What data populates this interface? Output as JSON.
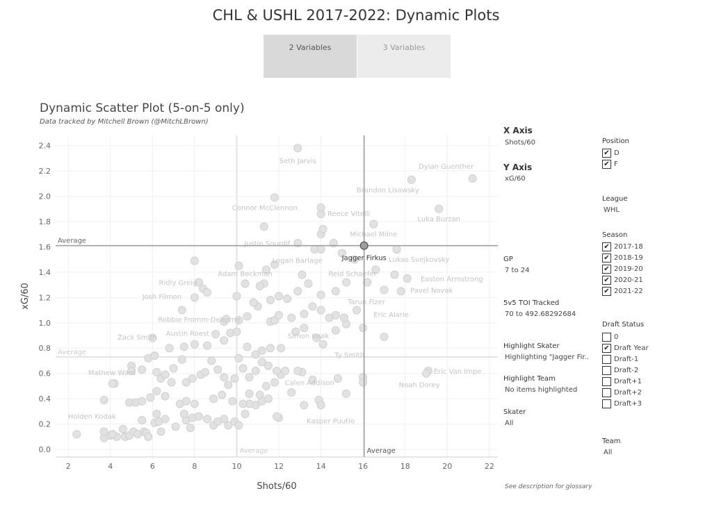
{
  "page_title": "CHL & USHL 2017-2022: Dynamic Plots",
  "tabs": [
    {
      "label": "2 Variables",
      "active": true
    },
    {
      "label": "3 Variables",
      "active": false
    }
  ],
  "chart_heading": "Dynamic Scatter Plot (5-on-5 only)",
  "chart_subheading": "Data tracked by Mitchell Brown (@MitchLBrown)",
  "side": {
    "x_axis_title": "X Axis",
    "x_axis_value": "Shots/60",
    "y_axis_title": "Y Axis",
    "y_axis_value": "xG/60",
    "gp_label": "GP",
    "gp_value": "7 to 24",
    "toi_label": "5v5 TOI Tracked",
    "toi_value": "70 to 492.68292684",
    "highlight_skater_label": "Highlight Skater",
    "highlight_skater_value": "Highlighting \"Jagger Fir..",
    "highlight_team_label": "Highlight Team",
    "highlight_team_value": "No items highlighted",
    "skater_label": "Skater",
    "skater_value": "All",
    "glossary": "See description for glossary"
  },
  "filters": {
    "position": {
      "label": "Position",
      "options": [
        {
          "label": "D",
          "checked": true
        },
        {
          "label": "F",
          "checked": true
        }
      ]
    },
    "league": {
      "label": "League",
      "value": "WHL"
    },
    "season": {
      "label": "Season",
      "options": [
        {
          "label": "2017-18",
          "checked": true
        },
        {
          "label": "2018-19",
          "checked": true
        },
        {
          "label": "2019-20",
          "checked": true
        },
        {
          "label": "2020-21",
          "checked": true
        },
        {
          "label": "2021-22",
          "checked": true
        }
      ]
    },
    "draft_status": {
      "label": "Draft Status",
      "options": [
        {
          "label": "0",
          "checked": false
        },
        {
          "label": "Draft Year",
          "checked": true
        },
        {
          "label": "Draft-1",
          "checked": false
        },
        {
          "label": "Draft-2",
          "checked": false
        },
        {
          "label": "Draft+1",
          "checked": false
        },
        {
          "label": "Draft+2",
          "checked": false
        },
        {
          "label": "Draft+3",
          "checked": false
        }
      ]
    },
    "team": {
      "label": "Team",
      "value": "All"
    }
  },
  "chart_data": {
    "type": "scatter",
    "xlabel": "Shots/60",
    "ylabel": "xG/60",
    "xlim": [
      1.4,
      22.4
    ],
    "ylim": [
      -0.06,
      2.48
    ],
    "xticks": [
      2,
      4,
      6,
      8,
      10,
      12,
      14,
      16,
      18,
      20,
      22
    ],
    "yticks": [
      0.0,
      0.2,
      0.4,
      0.6,
      0.8,
      1.0,
      1.2,
      1.4,
      1.6,
      1.8,
      2.0,
      2.2,
      2.4
    ],
    "grid": true,
    "reference_lines": {
      "x_average": {
        "value": 16.05,
        "label": "Average"
      },
      "y_average": {
        "value": 1.61,
        "label": "Average"
      },
      "faded_x_average": {
        "value": 10.0,
        "label": "Average"
      },
      "faded_y_average": {
        "value": 0.73,
        "label": "Average"
      }
    },
    "highlighted": {
      "name": "Jagger Firkus",
      "x": 16.05,
      "y": 1.61
    },
    "labels": [
      {
        "name": "Seth Jarvis",
        "x": 12.9,
        "y": 2.38
      },
      {
        "name": "Dylan Guenther",
        "x": 21.2,
        "y": 2.14
      },
      {
        "name": "Brandon Lisowsky",
        "x": 18.3,
        "y": 2.13
      },
      {
        "name": "Connor McClennon",
        "x": 11.8,
        "y": 1.99
      },
      {
        "name": "Reece Vitelli",
        "x": 14.0,
        "y": 1.91
      },
      {
        "name": "Luka Burzan",
        "x": 19.6,
        "y": 1.9
      },
      {
        "name": "Michael Milne",
        "x": 16.5,
        "y": 1.78
      },
      {
        "name": "Justin Sourdif",
        "x": 12.9,
        "y": 1.63
      },
      {
        "name": "Logan Barlage",
        "x": 14.0,
        "y": 1.55
      },
      {
        "name": "Lukas Svejkovsky",
        "x": 17.6,
        "y": 1.58
      },
      {
        "name": "Adam Beckman",
        "x": 10.4,
        "y": 1.39
      },
      {
        "name": "Reid Schaefer",
        "x": 15.5,
        "y": 1.39
      },
      {
        "name": "Easton Armstrong",
        "x": 18.1,
        "y": 1.35
      },
      {
        "name": "Ridly Greig",
        "x": 8.2,
        "y": 1.32
      },
      {
        "name": "Pavel Novak",
        "x": 18.0,
        "y": 1.26
      },
      {
        "name": "Josh Filmon",
        "x": 7.9,
        "y": 1.21
      },
      {
        "name": "Tarun Fizer",
        "x": 15.5,
        "y": 1.17
      },
      {
        "name": "Robbie Fromm-Delorme",
        "x": 9.4,
        "y": 1.03
      },
      {
        "name": "Eric Alarie",
        "x": 17.6,
        "y": 1.11
      },
      {
        "name": "Zack Smith",
        "x": 6.0,
        "y": 0.89
      },
      {
        "name": "Austin Roest",
        "x": 8.0,
        "y": 0.92
      },
      {
        "name": "Simon Knak",
        "x": 13.8,
        "y": 0.9
      },
      {
        "name": "Ty Smith",
        "x": 14.3,
        "y": 0.75
      },
      {
        "name": "Mathew Ward",
        "x": 5.0,
        "y": 0.61
      },
      {
        "name": "Eric Van Impe",
        "x": 19.1,
        "y": 0.62
      },
      {
        "name": "Calen Addison",
        "x": 12.8,
        "y": 0.53
      },
      {
        "name": "Noah Dorey",
        "x": 19.0,
        "y": 0.6
      },
      {
        "name": "Kasper Puutio",
        "x": 13.8,
        "y": 0.36
      },
      {
        "name": "Holden Kodak",
        "x": 2.4,
        "y": 0.12
      }
    ],
    "points": [
      [
        2.4,
        0.12
      ],
      [
        3.7,
        0.09
      ],
      [
        3.7,
        0.14
      ],
      [
        4.0,
        0.11
      ],
      [
        4.3,
        0.1
      ],
      [
        4.1,
        0.12
      ],
      [
        4.7,
        0.1
      ],
      [
        4.6,
        0.16
      ],
      [
        4.9,
        0.11
      ],
      [
        5.1,
        0.14
      ],
      [
        5.3,
        0.12
      ],
      [
        5.6,
        0.14
      ],
      [
        5.7,
        0.13
      ],
      [
        5.8,
        0.1
      ],
      [
        5.5,
        0.23
      ],
      [
        6.1,
        0.21
      ],
      [
        6.4,
        0.14
      ],
      [
        6.3,
        0.22
      ],
      [
        6.6,
        0.24
      ],
      [
        6.2,
        0.28
      ],
      [
        7.1,
        0.18
      ],
      [
        7.6,
        0.23
      ],
      [
        7.8,
        0.17
      ],
      [
        7.5,
        0.28
      ],
      [
        7.9,
        0.25
      ],
      [
        8.2,
        0.26
      ],
      [
        8.6,
        0.24
      ],
      [
        8.9,
        0.19
      ],
      [
        9.1,
        0.22
      ],
      [
        9.4,
        0.24
      ],
      [
        9.6,
        0.19
      ],
      [
        9.9,
        0.22
      ],
      [
        10.1,
        0.19
      ],
      [
        10.4,
        0.28
      ],
      [
        10.9,
        0.35
      ],
      [
        10.6,
        0.36
      ],
      [
        11.2,
        0.38
      ],
      [
        11.5,
        0.4
      ],
      [
        12.0,
        0.25
      ],
      [
        11.9,
        0.26
      ],
      [
        13.2,
        0.35
      ],
      [
        13.9,
        0.39
      ],
      [
        14.0,
        0.35
      ],
      [
        15.2,
        0.44
      ],
      [
        3.7,
        0.39
      ],
      [
        4.2,
        0.52
      ],
      [
        4.1,
        0.52
      ],
      [
        4.9,
        0.37
      ],
      [
        5.2,
        0.37
      ],
      [
        5.5,
        0.38
      ],
      [
        5.9,
        0.41
      ],
      [
        6.2,
        0.46
      ],
      [
        6.6,
        0.42
      ],
      [
        7.3,
        0.36
      ],
      [
        7.6,
        0.38
      ],
      [
        8.0,
        0.36
      ],
      [
        8.9,
        0.4
      ],
      [
        9.3,
        0.43
      ],
      [
        9.8,
        0.38
      ],
      [
        10.3,
        0.36
      ],
      [
        10.6,
        0.44
      ],
      [
        11.1,
        0.43
      ],
      [
        11.4,
        0.5
      ],
      [
        11.8,
        0.53
      ],
      [
        12.1,
        0.59
      ],
      [
        12.6,
        0.45
      ],
      [
        13.1,
        0.61
      ],
      [
        13.6,
        0.55
      ],
      [
        14.8,
        0.56
      ],
      [
        16.0,
        0.57
      ],
      [
        16.0,
        0.53
      ],
      [
        5.0,
        0.66
      ],
      [
        5.0,
        0.62
      ],
      [
        5.5,
        0.63
      ],
      [
        5.8,
        0.72
      ],
      [
        6.1,
        0.74
      ],
      [
        6.2,
        0.61
      ],
      [
        6.4,
        0.56
      ],
      [
        6.6,
        0.59
      ],
      [
        6.9,
        0.53
      ],
      [
        7.0,
        0.64
      ],
      [
        7.4,
        0.71
      ],
      [
        7.6,
        0.53
      ],
      [
        7.9,
        0.56
      ],
      [
        8.3,
        0.59
      ],
      [
        8.5,
        0.61
      ],
      [
        8.8,
        0.7
      ],
      [
        9.1,
        0.63
      ],
      [
        9.4,
        0.57
      ],
      [
        9.6,
        0.51
      ],
      [
        9.9,
        0.56
      ],
      [
        10.1,
        0.72
      ],
      [
        10.3,
        0.64
      ],
      [
        10.6,
        0.57
      ],
      [
        10.9,
        0.62
      ],
      [
        11.2,
        0.69
      ],
      [
        11.5,
        0.66
      ],
      [
        11.9,
        0.62
      ],
      [
        12.3,
        0.62
      ],
      [
        12.9,
        0.62
      ],
      [
        6.0,
        0.88
      ],
      [
        6.8,
        0.8
      ],
      [
        7.5,
        0.81
      ],
      [
        8.0,
        0.83
      ],
      [
        8.6,
        0.82
      ],
      [
        9.0,
        0.91
      ],
      [
        9.4,
        0.86
      ],
      [
        9.7,
        0.92
      ],
      [
        10.0,
        0.93
      ],
      [
        10.5,
        0.81
      ],
      [
        10.9,
        0.75
      ],
      [
        11.2,
        0.78
      ],
      [
        11.6,
        0.8
      ],
      [
        12.1,
        0.8
      ],
      [
        12.8,
        0.93
      ],
      [
        13.2,
        0.96
      ],
      [
        13.8,
        0.88
      ],
      [
        14.1,
        0.83
      ],
      [
        14.7,
        0.94
      ],
      [
        15.2,
        0.99
      ],
      [
        16.0,
        0.96
      ],
      [
        17.0,
        0.89
      ],
      [
        7.4,
        1.1
      ],
      [
        8.0,
        1.2
      ],
      [
        9.4,
        1.01
      ],
      [
        9.5,
        1.03
      ],
      [
        10.1,
        1.02
      ],
      [
        10.5,
        1.05
      ],
      [
        11.0,
        1.13
      ],
      [
        11.6,
        1.01
      ],
      [
        11.8,
        1.02
      ],
      [
        12.0,
        1.06
      ],
      [
        12.6,
        1.04
      ],
      [
        13.2,
        1.07
      ],
      [
        13.6,
        1.13
      ],
      [
        14.0,
        1.1
      ],
      [
        14.4,
        1.04
      ],
      [
        14.7,
        1.06
      ],
      [
        15.1,
        1.04
      ],
      [
        15.7,
        1.1
      ],
      [
        8.0,
        1.49
      ],
      [
        8.2,
        1.32
      ],
      [
        8.4,
        1.27
      ],
      [
        8.6,
        1.24
      ],
      [
        10.0,
        1.21
      ],
      [
        10.4,
        1.31
      ],
      [
        10.8,
        1.16
      ],
      [
        11.3,
        1.31
      ],
      [
        11.1,
        1.29
      ],
      [
        11.6,
        1.18
      ],
      [
        12.0,
        1.21
      ],
      [
        12.4,
        1.19
      ],
      [
        12.9,
        1.25
      ],
      [
        13.4,
        1.31
      ],
      [
        14.0,
        1.22
      ],
      [
        14.7,
        1.25
      ],
      [
        15.2,
        1.32
      ],
      [
        16.2,
        1.32
      ],
      [
        16.6,
        1.42
      ],
      [
        17.0,
        1.26
      ],
      [
        17.8,
        1.25
      ],
      [
        10.1,
        1.45
      ],
      [
        11.4,
        1.42
      ],
      [
        11.8,
        1.46
      ],
      [
        13.1,
        1.38
      ],
      [
        13.7,
        1.58
      ],
      [
        14.0,
        1.58
      ],
      [
        14.6,
        1.63
      ],
      [
        15.0,
        1.55
      ],
      [
        15.6,
        1.5
      ],
      [
        17.6,
        1.58
      ],
      [
        11.3,
        1.76
      ],
      [
        12.9,
        1.63
      ],
      [
        14.0,
        1.7
      ],
      [
        14.1,
        1.74
      ],
      [
        14.0,
        1.86
      ],
      [
        16.5,
        1.78
      ],
      [
        19.6,
        1.9
      ],
      [
        18.3,
        2.13
      ],
      [
        21.2,
        2.14
      ],
      [
        11.8,
        1.99
      ],
      [
        14.0,
        1.91
      ],
      [
        12.9,
        2.38
      ],
      [
        17.6,
        1.58
      ],
      [
        18.1,
        1.35
      ],
      [
        17.5,
        1.38
      ],
      [
        19.1,
        0.62
      ],
      [
        19.0,
        0.6
      ]
    ]
  }
}
